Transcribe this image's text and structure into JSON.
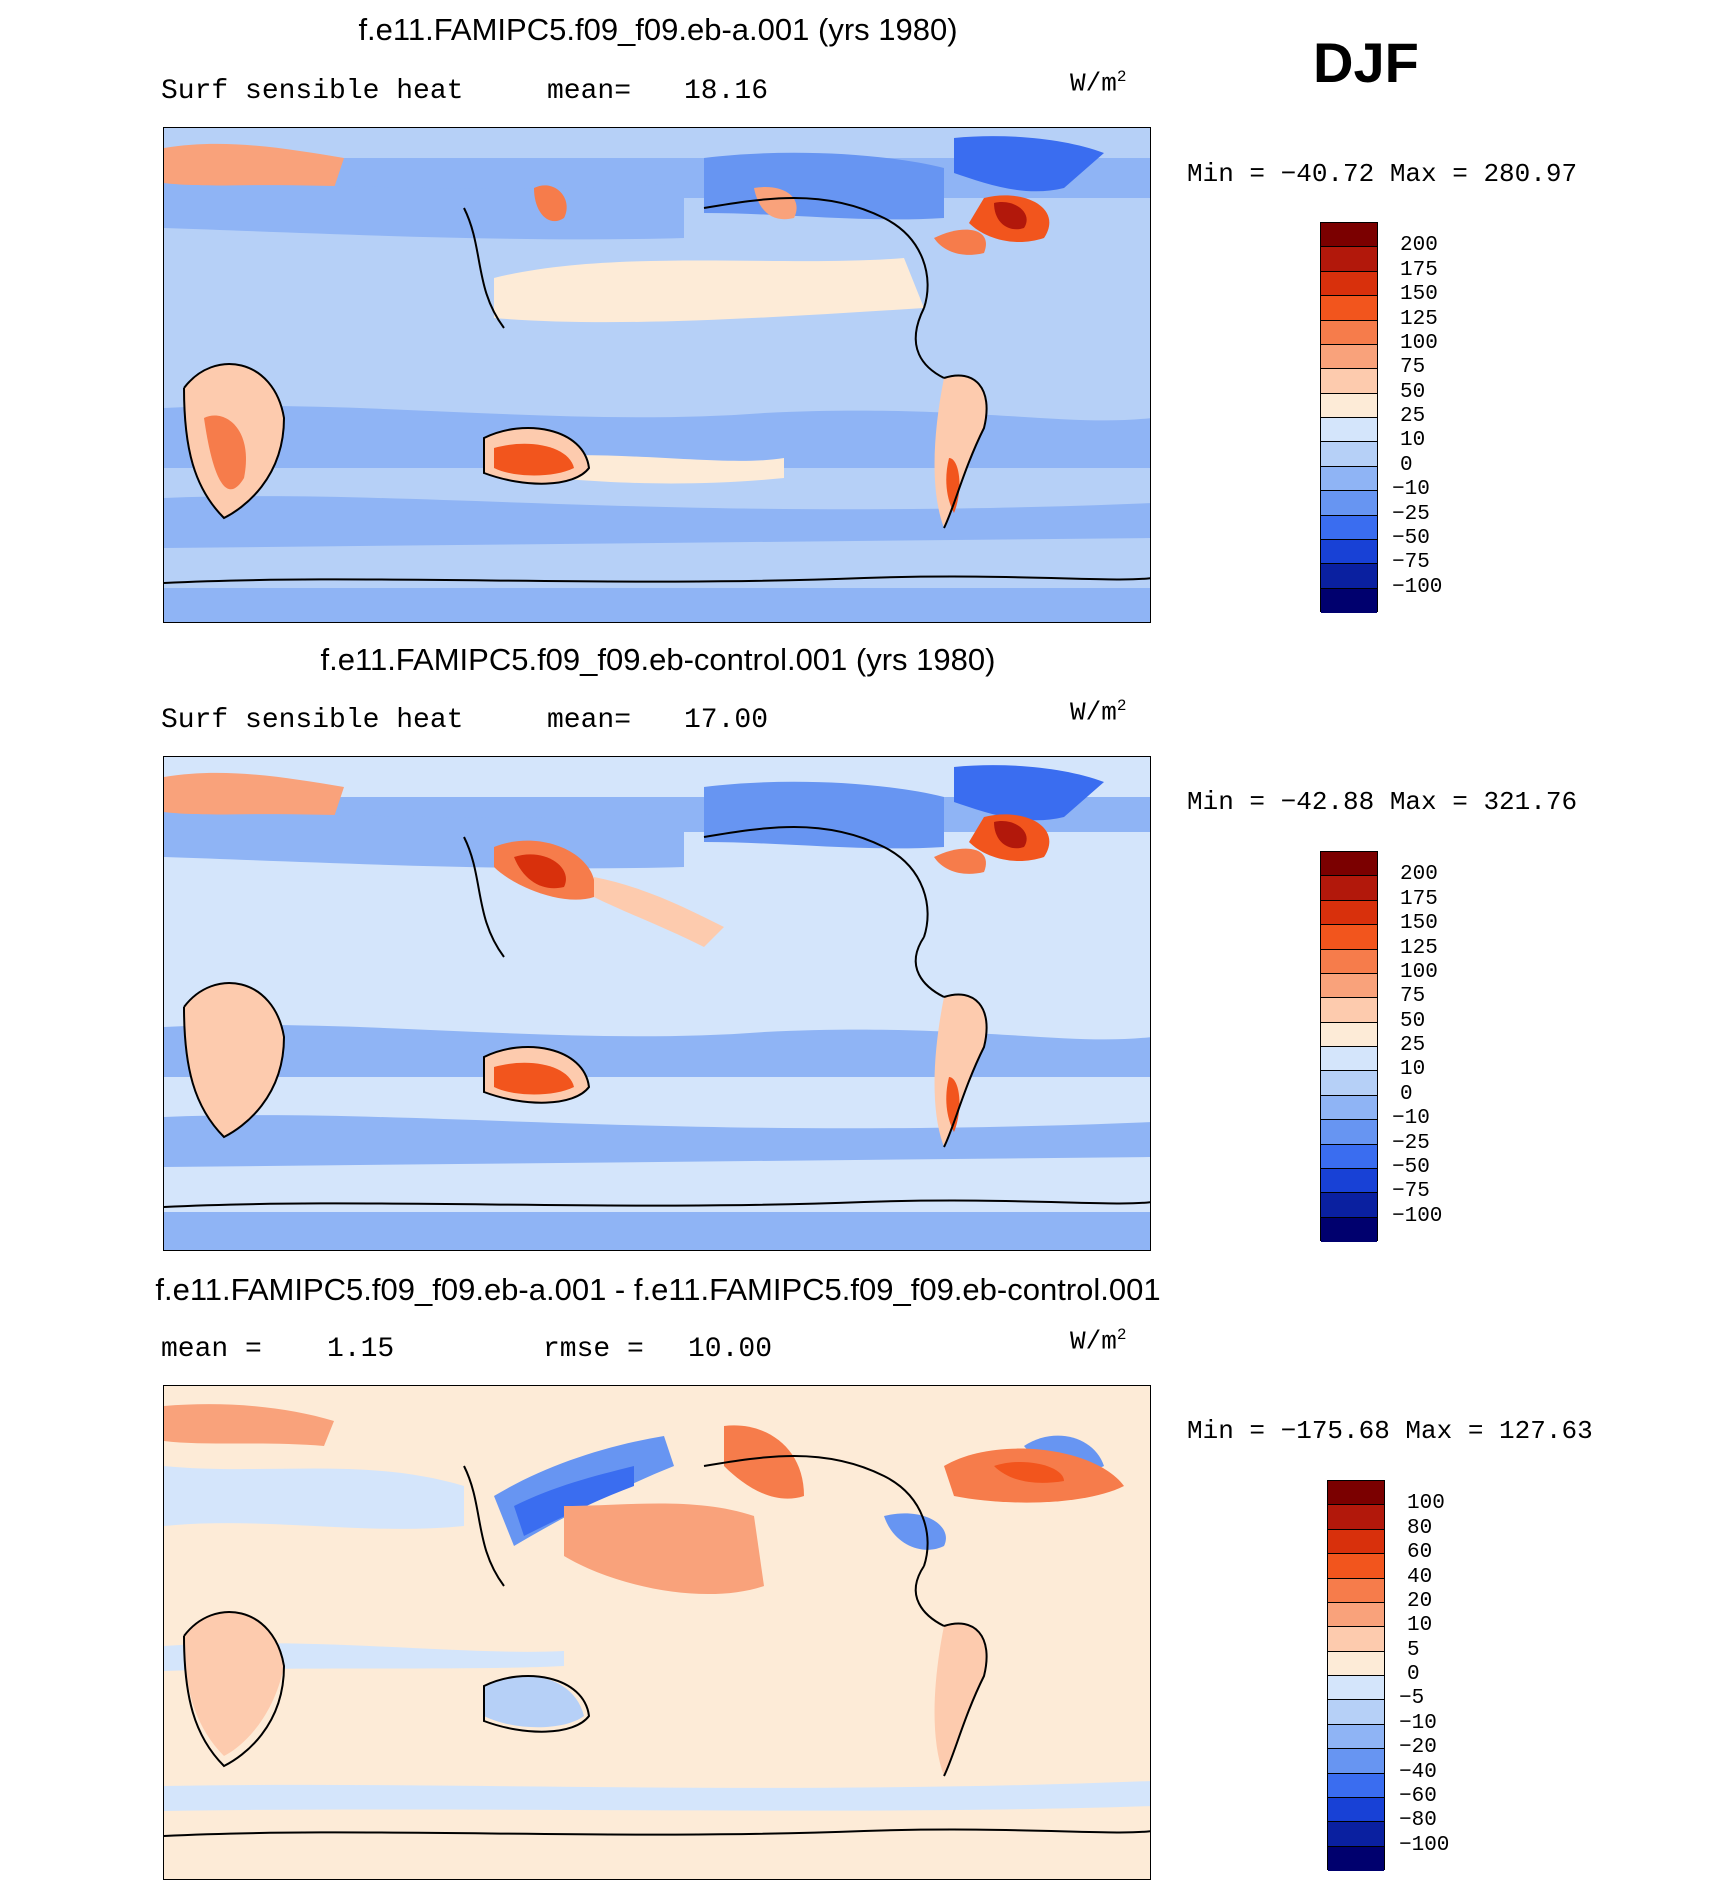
{
  "season": "DJF",
  "units": {
    "base": "W/m",
    "exp": "2"
  },
  "panels": [
    {
      "title": "f.e11.FAMIPC5.f09_f09.eb-a.001 (yrs 1980)",
      "left_label": "Surf sensible heat",
      "stat1_label": "mean=",
      "stat1_value": "18.16",
      "minmax": "Min = −40.72 Max = 280.97",
      "colorbar": {
        "levels": [
          "200",
          "175",
          "150",
          "125",
          "100",
          "75",
          "50",
          "25",
          "10",
          "0",
          "−10",
          "−25",
          "−50",
          "−75",
          "−100"
        ],
        "colors": [
          "#7b0000",
          "#b2180b",
          "#d8300c",
          "#f2551d",
          "#f67c4b",
          "#f9a27b",
          "#fdcbae",
          "#fdebd7",
          "#d4e5fb",
          "#b6d0f7",
          "#8fb4f5",
          "#6795f2",
          "#3a6df0",
          "#1841d6",
          "#0a20a0",
          "#00006e"
        ]
      }
    },
    {
      "title": "f.e11.FAMIPC5.f09_f09.eb-control.001 (yrs 1980)",
      "left_label": "Surf sensible heat",
      "stat1_label": "mean=",
      "stat1_value": "17.00",
      "minmax": "Min = −42.88 Max = 321.76",
      "colorbar": {
        "levels": [
          "200",
          "175",
          "150",
          "125",
          "100",
          "75",
          "50",
          "25",
          "10",
          "0",
          "−10",
          "−25",
          "−50",
          "−75",
          "−100"
        ],
        "colors": [
          "#7b0000",
          "#b2180b",
          "#d8300c",
          "#f2551d",
          "#f67c4b",
          "#f9a27b",
          "#fdcbae",
          "#fdebd7",
          "#d4e5fb",
          "#b6d0f7",
          "#8fb4f5",
          "#6795f2",
          "#3a6df0",
          "#1841d6",
          "#0a20a0",
          "#00006e"
        ]
      }
    },
    {
      "title": "f.e11.FAMIPC5.f09_f09.eb-a.001 - f.e11.FAMIPC5.f09_f09.eb-control.001",
      "stat1_label": "mean =",
      "stat1_value": "1.15",
      "stat2_label": "rmse =",
      "stat2_value": "10.00",
      "minmax": "Min = −175.68 Max = 127.63",
      "colorbar": {
        "levels": [
          "100",
          "80",
          "60",
          "40",
          "20",
          "10",
          "5",
          "0",
          "−5",
          "−10",
          "−20",
          "−40",
          "−60",
          "−80",
          "−100"
        ],
        "colors": [
          "#7b0000",
          "#b2180b",
          "#d8300c",
          "#f2551d",
          "#f67c4b",
          "#f9a27b",
          "#fdcbae",
          "#fdebd7",
          "#d4e5fb",
          "#b6d0f7",
          "#8fb4f5",
          "#6795f2",
          "#3a6df0",
          "#1841d6",
          "#0a20a0",
          "#00006e"
        ]
      }
    }
  ]
}
